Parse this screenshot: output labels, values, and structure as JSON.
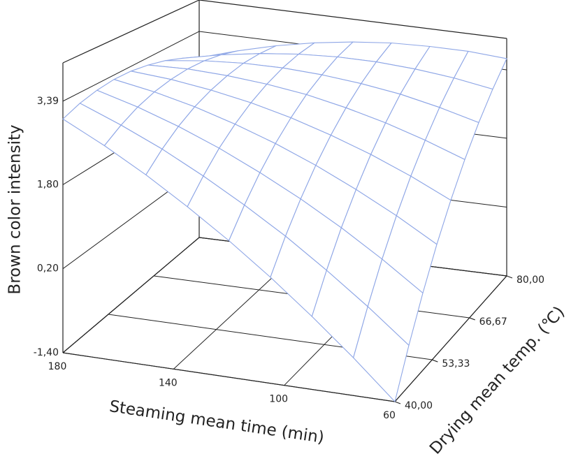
{
  "chart_data": {
    "type": "surface",
    "x_label": "Steaming mean time (min)",
    "y_label": "Drying mean temp. (℃)",
    "z_label": "Brown color intensity",
    "x": [
      60,
      75,
      90,
      105,
      120,
      135,
      150,
      165,
      180
    ],
    "y": [
      40,
      45,
      50,
      55,
      60,
      65,
      70,
      75,
      80
    ],
    "z": [
      [
        -1.4,
        -0.68,
        -0.01,
        0.62,
        1.2,
        1.73,
        2.22,
        2.66,
        3.05
      ],
      [
        -0.61,
        0.03,
        0.62,
        1.17,
        1.66,
        2.11,
        2.52,
        2.87,
        3.18
      ],
      [
        0.14,
        0.7,
        1.21,
        1.67,
        2.08,
        2.45,
        2.77,
        3.04,
        3.26
      ],
      [
        0.85,
        1.32,
        1.74,
        2.12,
        2.45,
        2.73,
        2.97,
        3.16,
        3.3
      ],
      [
        1.5,
        1.89,
        2.23,
        2.52,
        2.77,
        2.97,
        3.12,
        3.23,
        3.29
      ],
      [
        2.11,
        2.41,
        2.67,
        2.88,
        3.05,
        3.16,
        3.23,
        3.26,
        3.23
      ],
      [
        2.67,
        2.89,
        3.07,
        3.19,
        3.27,
        3.31,
        3.3,
        3.24,
        3.13
      ],
      [
        3.18,
        3.32,
        3.41,
        3.46,
        3.46,
        3.41,
        3.31,
        3.17,
        2.98
      ],
      [
        3.65,
        3.71,
        3.71,
        3.68,
        3.59,
        3.46,
        3.28,
        3.05,
        2.78
      ]
    ],
    "xlim": [
      60,
      180
    ],
    "ylim": [
      40,
      80
    ],
    "zlim": [
      -1.4,
      4.12
    ],
    "xticks": [
      180,
      140,
      100,
      60
    ],
    "yticks": [
      {
        "value": 40,
        "label": "40,00"
      },
      {
        "value": 53.33,
        "label": "53,33"
      },
      {
        "value": 66.67,
        "label": "66,67"
      },
      {
        "value": 80,
        "label": "80,00"
      }
    ],
    "zticks": [
      {
        "value": -1.4,
        "label": "-1,40"
      },
      {
        "value": 0.2,
        "label": "0,20"
      },
      {
        "value": 1.8,
        "label": "1,80"
      },
      {
        "value": 3.39,
        "label": "3,39"
      }
    ],
    "color": "#8ea6e6",
    "grid": true
  }
}
